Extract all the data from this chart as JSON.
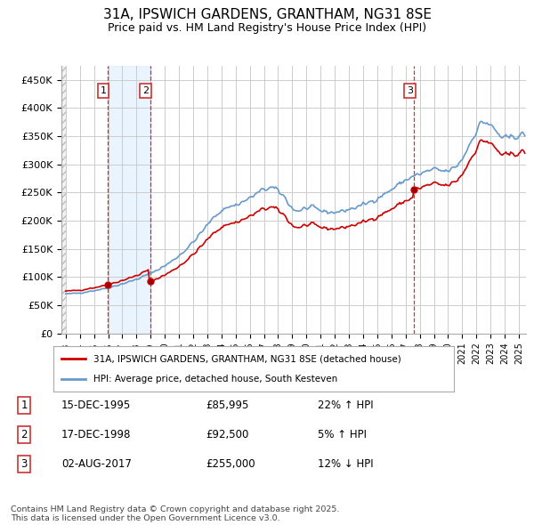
{
  "title_line1": "31A, IPSWICH GARDENS, GRANTHAM, NG31 8SE",
  "title_line2": "Price paid vs. HM Land Registry's House Price Index (HPI)",
  "ylabel_ticks": [
    0,
    50000,
    100000,
    150000,
    200000,
    250000,
    300000,
    350000,
    400000,
    450000
  ],
  "ylabel_labels": [
    "£0",
    "£50K",
    "£100K",
    "£150K",
    "£200K",
    "£250K",
    "£300K",
    "£350K",
    "£400K",
    "£450K"
  ],
  "ylim": [
    0,
    475000
  ],
  "xlim_start": 1992.7,
  "xlim_end": 2025.5,
  "sale_dates": [
    1995.958,
    1998.958,
    2017.583
  ],
  "sale_prices": [
    85995,
    92500,
    255000
  ],
  "sale_labels": [
    "1",
    "2",
    "3"
  ],
  "legend_property": "31A, IPSWICH GARDENS, GRANTHAM, NG31 8SE (detached house)",
  "legend_hpi": "HPI: Average price, detached house, South Kesteven",
  "table_rows": [
    [
      "1",
      "15-DEC-1995",
      "£85,995",
      "22% ↑ HPI"
    ],
    [
      "2",
      "17-DEC-1998",
      "£92,500",
      "5% ↑ HPI"
    ],
    [
      "3",
      "02-AUG-2017",
      "£255,000",
      "12% ↓ HPI"
    ]
  ],
  "footer": "Contains HM Land Registry data © Crown copyright and database right 2025.\nThis data is licensed under the Open Government Licence v3.0.",
  "red_color": "#cc0000",
  "blue_color": "#6699cc",
  "blue_fill_color": "#ddeeff",
  "hatch_color": "#cccccc",
  "grid_color": "#cccccc",
  "bg_color": "#ffffff"
}
